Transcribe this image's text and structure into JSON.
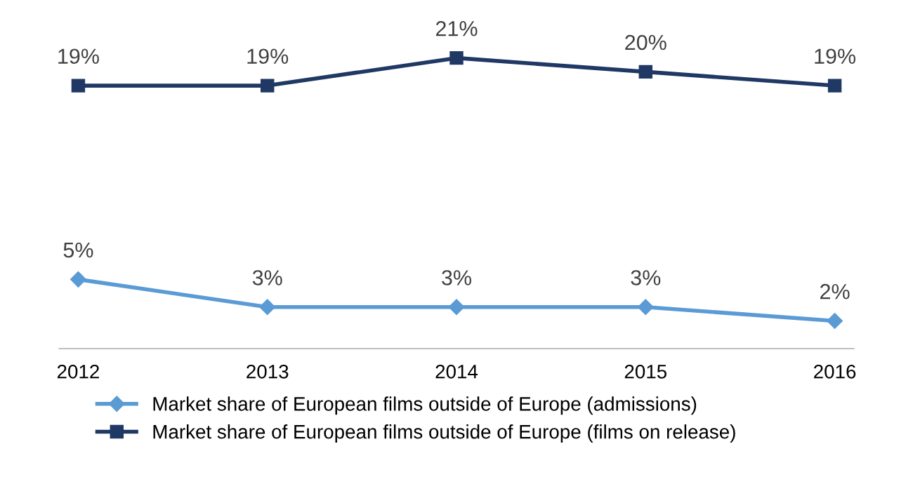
{
  "chart_data": {
    "type": "line",
    "categories": [
      "2012",
      "2013",
      "2014",
      "2015",
      "2016"
    ],
    "series": [
      {
        "name": "Market share of European films outside of Europe (admissions)",
        "color": "#5b9bd5",
        "marker": "diamond",
        "values": [
          5,
          3,
          3,
          3,
          2
        ],
        "value_labels": [
          "5%",
          "3%",
          "3%",
          "3%",
          "2%"
        ]
      },
      {
        "name": "Market share of European films outside of Europe (films on release)",
        "color": "#1f3864",
        "marker": "square",
        "values": [
          19,
          19,
          21,
          20,
          19
        ],
        "value_labels": [
          "19%",
          "19%",
          "21%",
          "20%",
          "19%"
        ]
      }
    ],
    "legend": "bottom",
    "line_style": "solid"
  }
}
